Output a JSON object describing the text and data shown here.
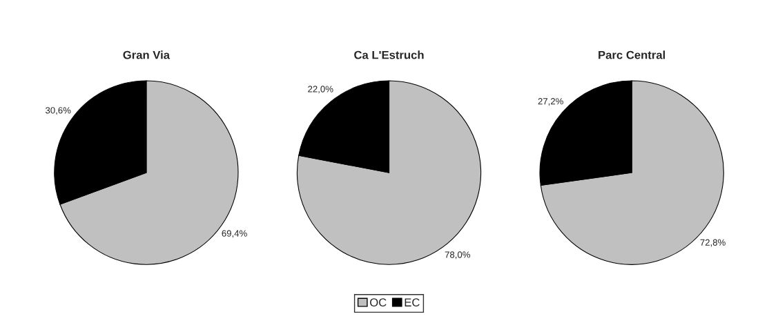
{
  "chart_data": {
    "type": "pie",
    "categories": [
      "OC",
      "EC"
    ],
    "colors": [
      "#c0c0c0",
      "#000000"
    ],
    "legend": "bottom",
    "series": [
      {
        "name": "Gran Via",
        "values": [
          69.4,
          30.6
        ],
        "value_labels": [
          "69,4%",
          "30,6%"
        ]
      },
      {
        "name": "Ca L'Estruch",
        "values": [
          78.0,
          22.0
        ],
        "value_labels": [
          "78,0%",
          "22,0%"
        ]
      },
      {
        "name": "Parc Central",
        "values": [
          72.8,
          27.2
        ],
        "value_labels": [
          "72,8%",
          "27,2%"
        ]
      }
    ]
  }
}
